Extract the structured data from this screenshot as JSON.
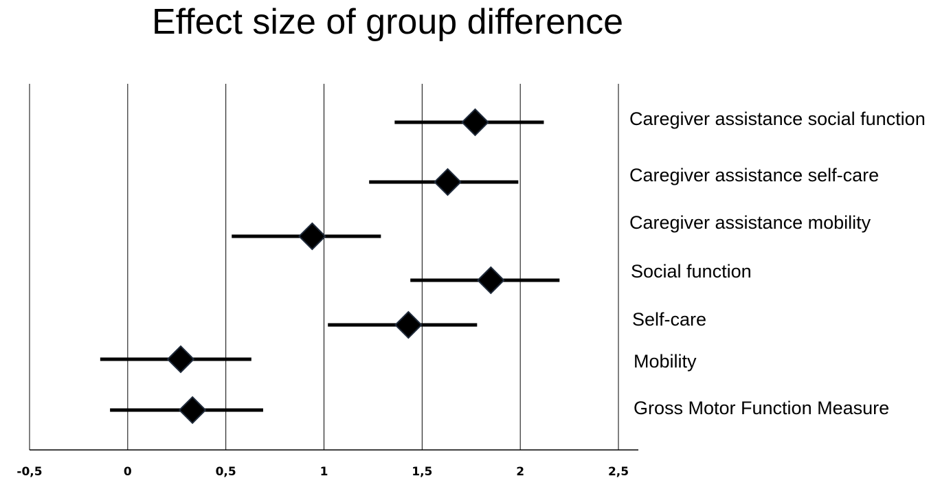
{
  "chart_data": {
    "type": "scatter",
    "subtype": "forest-plot",
    "title": "Effect size of group difference",
    "xlabel": "",
    "ylabel": "",
    "xlim": [
      -0.5,
      2.5
    ],
    "grid": true,
    "x_ticks": [
      -0.5,
      0,
      0.5,
      1,
      1.5,
      2,
      2.5
    ],
    "x_tick_labels": [
      "-0,5",
      "0",
      "0,5",
      "1",
      "1,5",
      "2",
      "2,5"
    ],
    "categories": [
      "Caregiver assistance social function",
      "Caregiver assistance self-care",
      "Caregiver assistance mobility",
      "Social function",
      "Self-care",
      "Mobility",
      "Gross Motor Function Measure"
    ],
    "estimates": [
      1.77,
      1.63,
      0.94,
      1.85,
      1.43,
      0.27,
      0.33
    ],
    "ci_lower": [
      1.36,
      1.23,
      0.53,
      1.44,
      1.02,
      -0.14,
      -0.09
    ],
    "ci_upper": [
      2.12,
      1.99,
      1.29,
      2.2,
      1.78,
      0.63,
      0.69
    ],
    "marker": "diamond",
    "marker_color": "#000000"
  }
}
